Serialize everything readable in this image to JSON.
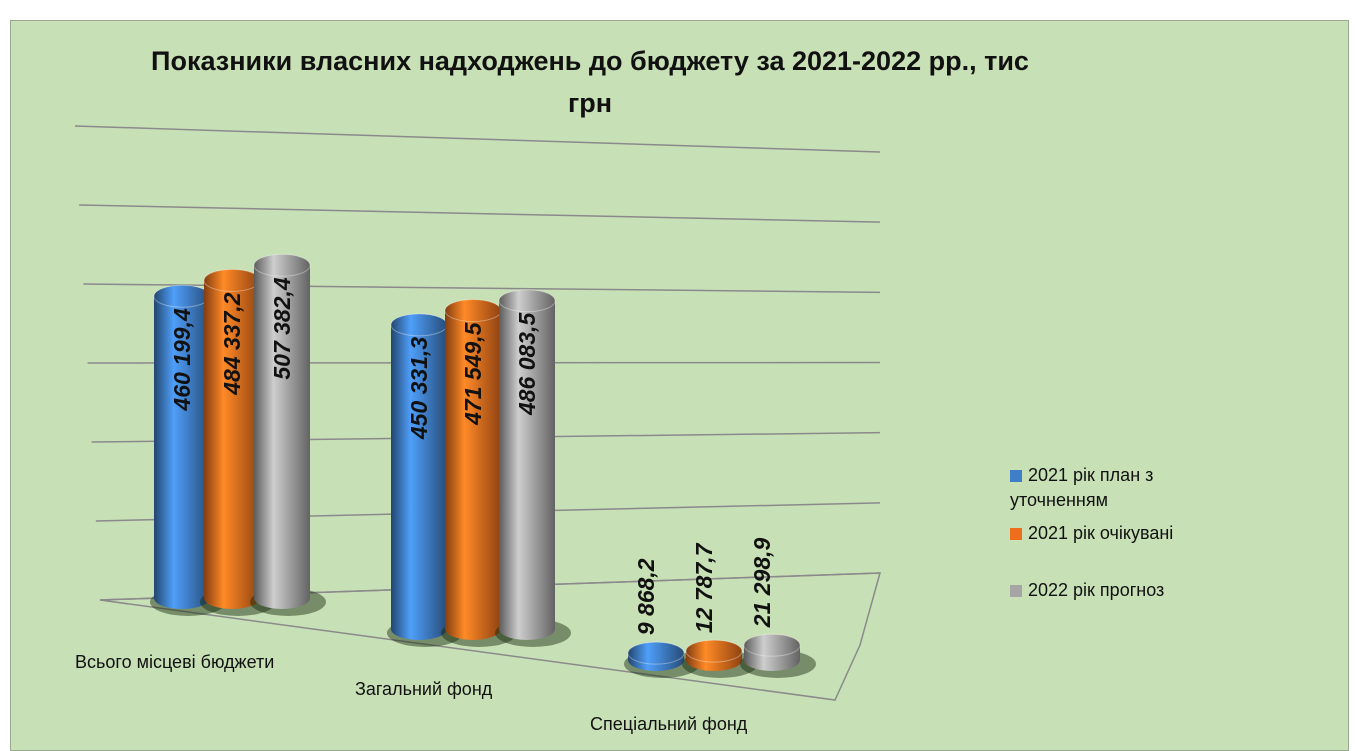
{
  "chart_data": {
    "type": "bar",
    "title": "Показники власних надходжень до бюджету за 2021-2022 рр., тис грн",
    "categories": [
      "Всього місцеві бюджети",
      "Загальний фонд",
      "Спеціальний фонд"
    ],
    "series": [
      {
        "name": "2021 рік план з уточненням",
        "color": "#3f7fc8",
        "values": [
          460199.4,
          450331.3,
          9868.2
        ],
        "value_labels": [
          "460 199,4",
          "450 331,3",
          "9 868,2"
        ]
      },
      {
        "name": "2021 рік очікувані",
        "color": "#ee6e1e",
        "values": [
          484337.2,
          471549.5,
          12787.7
        ],
        "value_labels": [
          "484 337,2",
          "471 549,5",
          "12 787,7"
        ]
      },
      {
        "name": "2022 рік прогноз",
        "color": "#a5a5a5",
        "values": [
          507382.4,
          486083.5,
          21298.9
        ],
        "value_labels": [
          "507 382,4",
          "486 083,5",
          "21 298,9"
        ]
      }
    ],
    "ylim": [
      0,
      600000
    ],
    "yticks": [
      0,
      100000,
      200000,
      300000,
      400000,
      500000,
      600000
    ],
    "grid": true,
    "legend": "right"
  }
}
